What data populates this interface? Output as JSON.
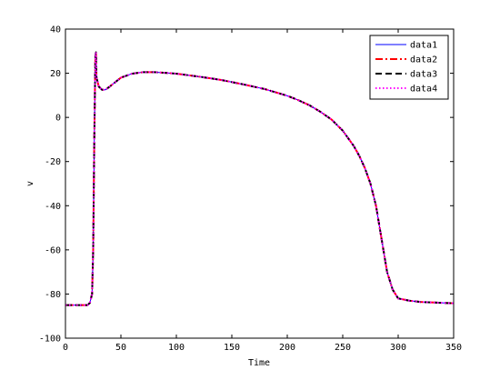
{
  "chart_data": {
    "type": "line",
    "title": "",
    "xlabel": "Time",
    "ylabel": "v",
    "xlim": [
      0,
      350
    ],
    "ylim": [
      -100,
      40
    ],
    "x_ticks": [
      "0",
      "50",
      "100",
      "150",
      "200",
      "250",
      "300",
      "350"
    ],
    "y_ticks": [
      "40",
      "20",
      "0",
      "-20",
      "-40",
      "-60",
      "-80",
      "-100"
    ],
    "grid": false,
    "legend_position": "top-right",
    "x": [
      0,
      20,
      22,
      24,
      25,
      26,
      27,
      27.5,
      28,
      29,
      30,
      33,
      36,
      40,
      45,
      50,
      60,
      70,
      80,
      90,
      100,
      120,
      140,
      160,
      180,
      200,
      210,
      220,
      230,
      240,
      250,
      260,
      265,
      270,
      275,
      280,
      285,
      290,
      295,
      300,
      310,
      320,
      330,
      340,
      350
    ],
    "series": [
      {
        "name": "data1",
        "color": "#0000ff",
        "style": "solid",
        "values": [
          -85,
          -85,
          -84,
          -80,
          -60,
          -10,
          28,
          29.5,
          18,
          16,
          14,
          12.5,
          12.5,
          14,
          16,
          18,
          19.8,
          20.5,
          20.5,
          20.2,
          19.8,
          18.5,
          17,
          15,
          12.8,
          9.8,
          7.8,
          5.5,
          2.5,
          -1,
          -6,
          -13,
          -17.5,
          -23,
          -30,
          -40,
          -55,
          -70,
          -78,
          -82,
          -83,
          -83.6,
          -83.8,
          -84,
          -84.2
        ]
      },
      {
        "name": "data2",
        "color": "#ff0000",
        "style": "dashdot",
        "values": [
          -85,
          -85,
          -84,
          -80,
          -60,
          -10,
          28,
          29.5,
          18,
          16,
          14,
          12.5,
          12.5,
          14,
          16,
          18,
          19.8,
          20.5,
          20.5,
          20.2,
          19.8,
          18.5,
          17,
          15,
          12.8,
          9.8,
          7.8,
          5.5,
          2.5,
          -1,
          -6,
          -13,
          -17.5,
          -23,
          -30,
          -40,
          -55,
          -70,
          -78,
          -82,
          -83,
          -83.6,
          -83.8,
          -84,
          -84.2
        ]
      },
      {
        "name": "data3",
        "color": "#000000",
        "style": "dashed",
        "values": [
          -85,
          -85,
          -84,
          -80,
          -60,
          -10,
          28,
          29.5,
          18,
          16,
          14,
          12.5,
          12.5,
          14,
          16,
          18,
          19.8,
          20.5,
          20.5,
          20.2,
          19.8,
          18.5,
          17,
          15,
          12.8,
          9.8,
          7.8,
          5.5,
          2.5,
          -1,
          -6,
          -13,
          -17.5,
          -23,
          -30,
          -40,
          -55,
          -70,
          -78,
          -82,
          -83,
          -83.6,
          -83.8,
          -84,
          -84.2
        ]
      },
      {
        "name": "data4",
        "color": "#ff00ff",
        "style": "dotted",
        "values": [
          -85,
          -85,
          -84,
          -80,
          -60,
          -10,
          28,
          29.5,
          18,
          16,
          14,
          12.5,
          12.5,
          14,
          16,
          18,
          19.8,
          20.5,
          20.5,
          20.2,
          19.8,
          18.5,
          17,
          15,
          12.8,
          9.8,
          7.8,
          5.5,
          2.5,
          -1,
          -6,
          -13,
          -17.5,
          -23,
          -30,
          -40,
          -55,
          -70,
          -78,
          -82,
          -83,
          -83.6,
          -83.8,
          -84,
          -84.2
        ]
      }
    ]
  }
}
